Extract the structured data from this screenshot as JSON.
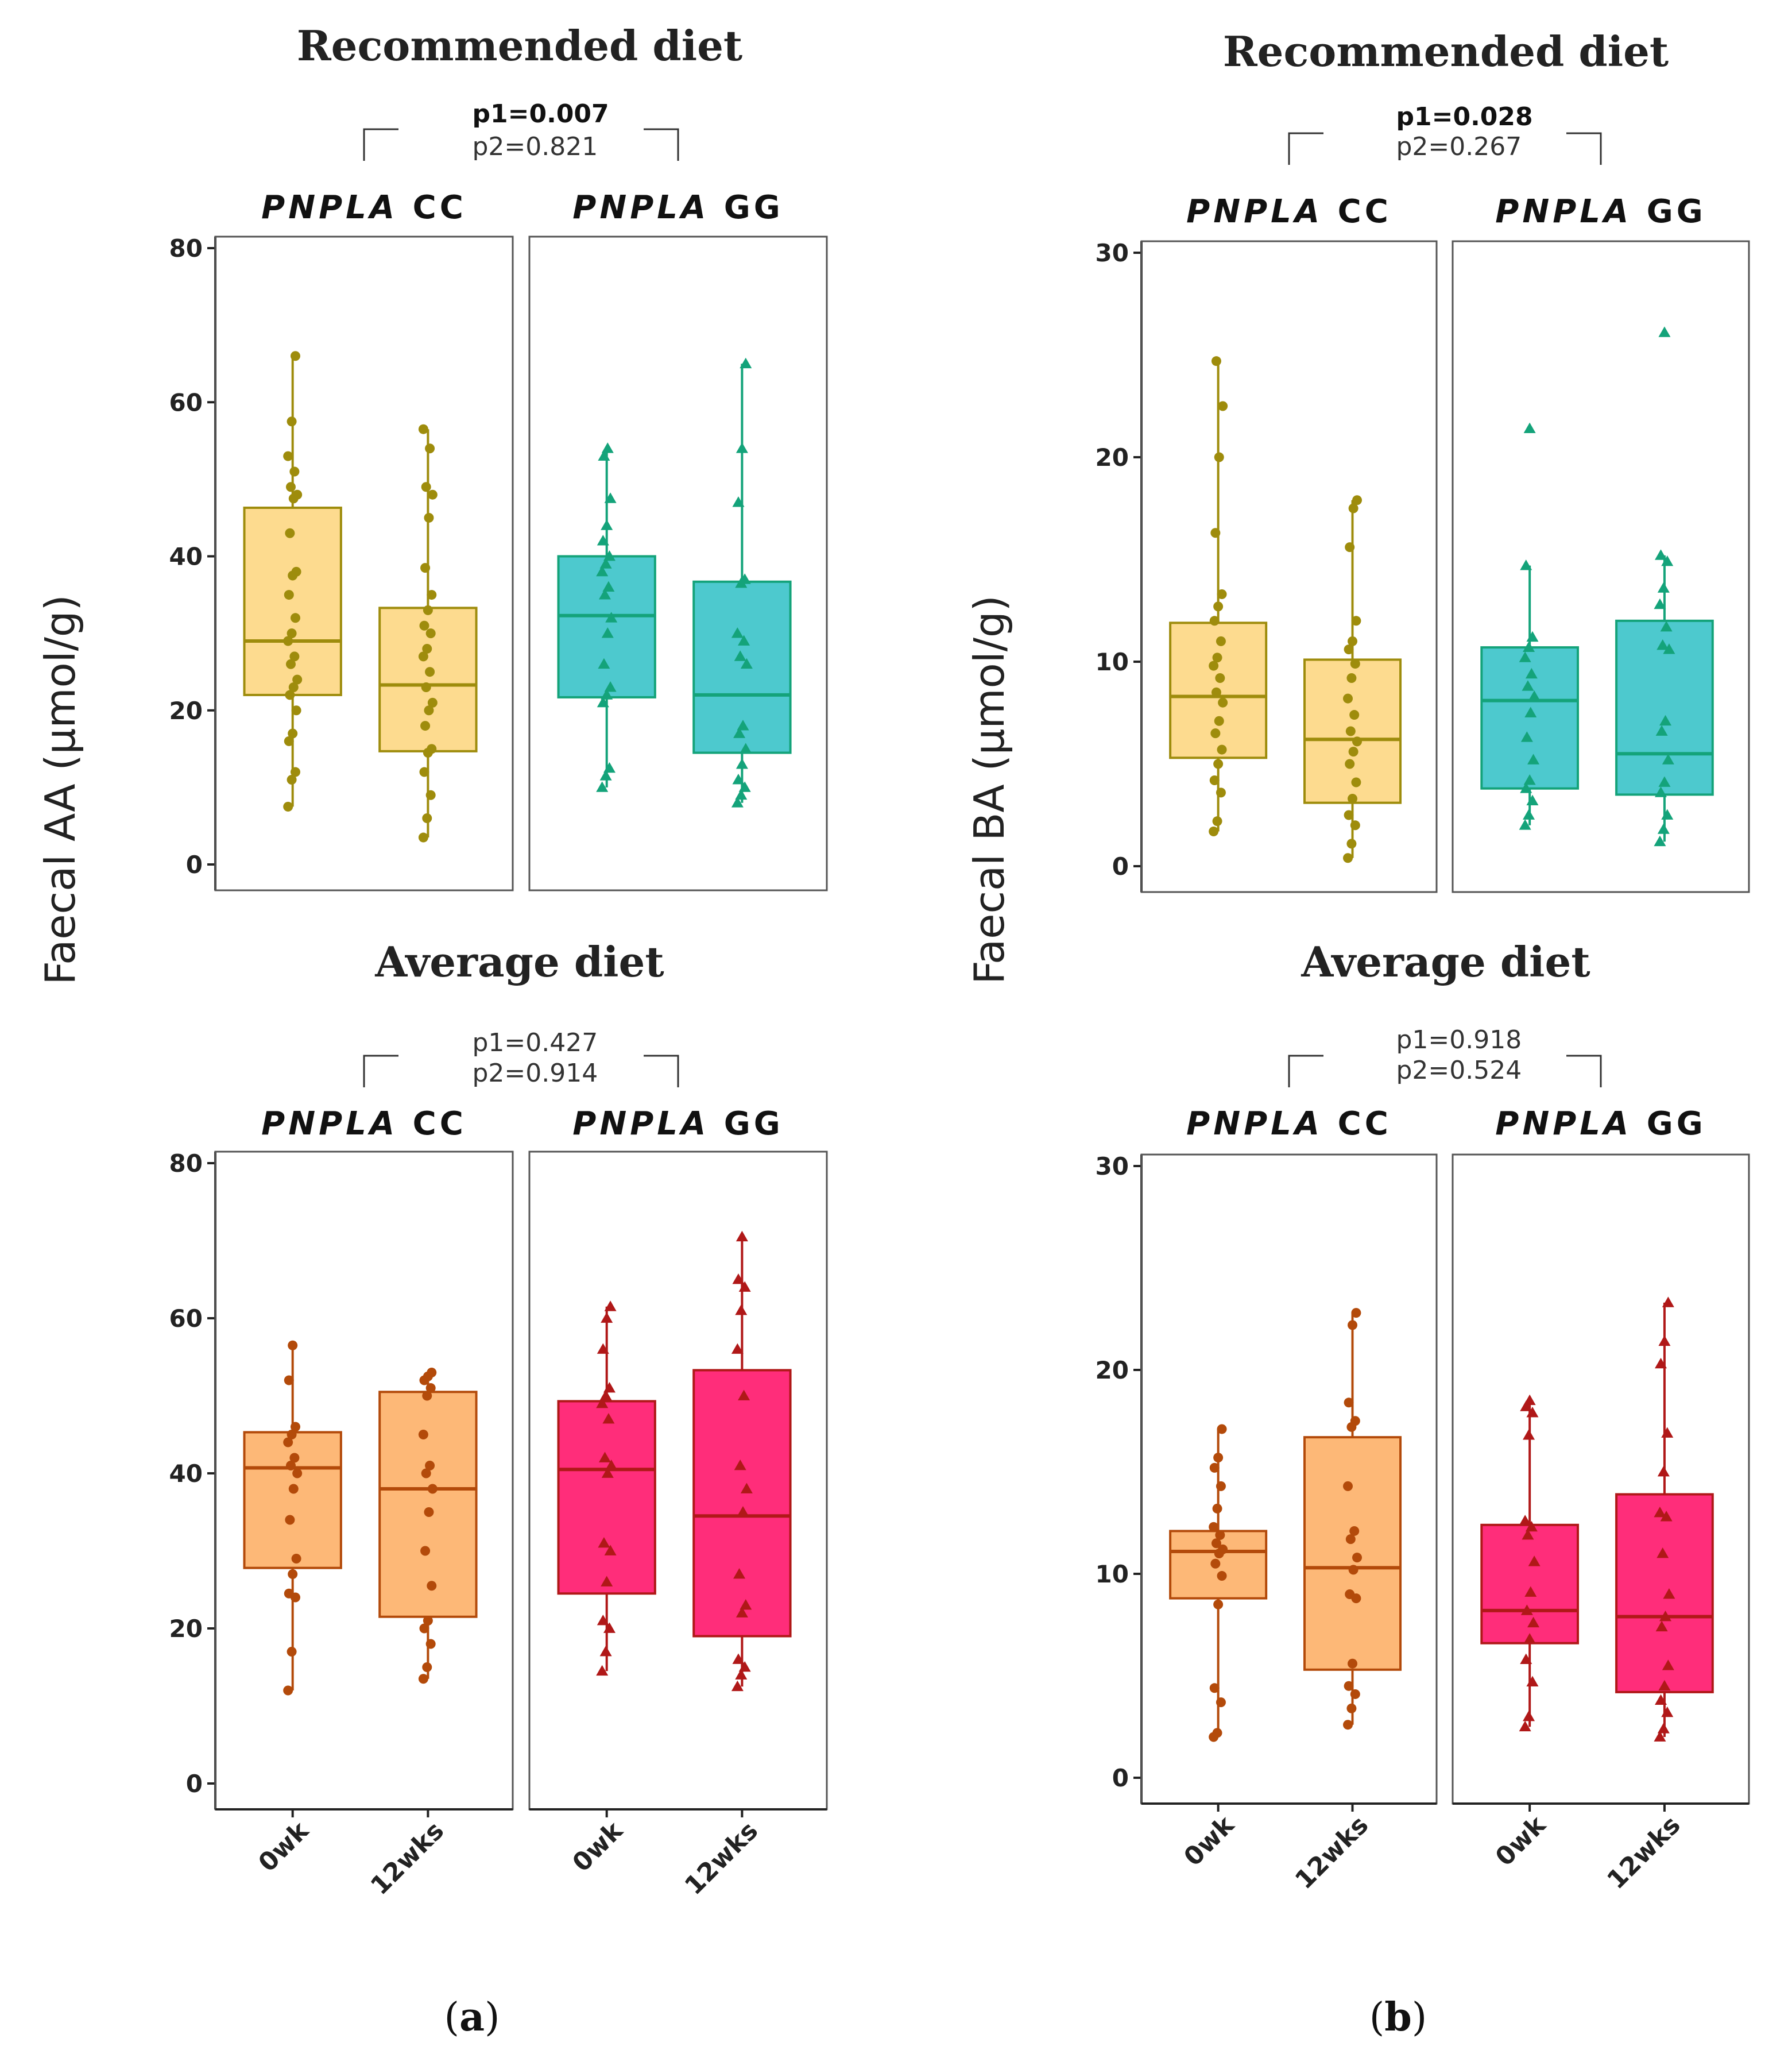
{
  "figure": {
    "panel_labels": [
      {
        "open": "(",
        "letter": "a",
        "close": ")"
      },
      {
        "open": "(",
        "letter": "b",
        "close": ")"
      }
    ]
  },
  "colors": {
    "rec_cc_fill": "#FDDB8F",
    "rec_cc_line": "#9E8C0C",
    "rec_gg_fill": "#4DC9CE",
    "rec_gg_line": "#14A37A",
    "avg_cc_fill": "#FDB877",
    "avg_cc_line": "#B34A0A",
    "avg_gg_fill": "#FF2D7A",
    "avg_gg_line": "#B01818"
  },
  "chart_data": [
    {
      "id": "aa_recommended",
      "type": "boxplot",
      "title": "Recommended diet",
      "ylabel": "Faecal  AA (μmol/g)",
      "ylim": [
        0,
        80
      ],
      "yticks": [
        0,
        20,
        40,
        60,
        80
      ],
      "pvalues": {
        "p1": "p1=0.007",
        "p2": "p2=0.821",
        "p1_bold": true,
        "p2_bold": false
      },
      "categories": [
        "0wk",
        "12wks"
      ],
      "facets": [
        {
          "strip_italic": "PNPLA",
          "strip_rest": "CC",
          "genotype": "CC",
          "marker": "circle",
          "boxes": [
            {
              "label": "0wk",
              "q1": 22,
              "median": 29,
              "q3": 46.3,
              "min": 7.5,
              "max": 66,
              "points": [
                7.5,
                11,
                12,
                16,
                17,
                20,
                22,
                23,
                24,
                26,
                27,
                29,
                30,
                32,
                35,
                37.5,
                38,
                43,
                47.5,
                48,
                49,
                51,
                53,
                57.5,
                66
              ]
            },
            {
              "label": "12wks",
              "q1": 14.7,
              "median": 23.3,
              "q3": 33.3,
              "min": 3.5,
              "max": 56.5,
              "points": [
                3.5,
                6,
                9,
                12,
                14.5,
                15,
                18,
                20,
                21,
                23,
                25,
                27,
                28,
                30,
                31,
                33,
                35,
                38.5,
                45,
                48,
                49,
                54,
                56.5
              ]
            }
          ]
        },
        {
          "strip_italic": "PNPLA",
          "strip_rest": "GG",
          "genotype": "GG",
          "marker": "triangle",
          "boxes": [
            {
              "label": "0wk",
              "q1": 21.7,
              "median": 32.3,
              "q3": 40,
              "min": 10,
              "max": 54,
              "points": [
                10,
                11.5,
                12.5,
                21,
                22,
                23,
                26,
                30,
                32,
                35,
                36,
                38,
                39,
                40,
                42,
                44,
                47.5,
                53,
                54
              ]
            },
            {
              "label": "12wks",
              "q1": 14.5,
              "median": 22,
              "q3": 36.7,
              "min": 8,
              "max": 65,
              "points": [
                8,
                9,
                10,
                11,
                13,
                15,
                17,
                18,
                26,
                27,
                29,
                30,
                36.5,
                37,
                47,
                54,
                65
              ]
            }
          ]
        }
      ]
    },
    {
      "id": "aa_average",
      "type": "boxplot",
      "title": "Average diet",
      "ylabel": "Faecal  AA (μmol/g)",
      "ylim": [
        0,
        80
      ],
      "yticks": [
        0,
        20,
        40,
        60,
        80
      ],
      "pvalues": {
        "p1": "p1=0.427",
        "p2": "p2=0.914",
        "p1_bold": false,
        "p2_bold": false
      },
      "categories": [
        "0wk",
        "12wks"
      ],
      "facets": [
        {
          "strip_italic": "PNPLA",
          "strip_rest": "CC",
          "genotype": "CC",
          "marker": "circle",
          "boxes": [
            {
              "label": "0wk",
              "q1": 27.8,
              "median": 40.7,
              "q3": 45.3,
              "min": 12,
              "max": 56.5,
              "points": [
                12,
                17,
                24,
                24.5,
                27,
                29,
                34,
                38,
                40,
                41,
                42,
                44,
                45,
                46,
                52,
                56.5
              ]
            },
            {
              "label": "12wks",
              "q1": 21.5,
              "median": 38,
              "q3": 50.5,
              "min": 13.5,
              "max": 53,
              "points": [
                13.5,
                15,
                18,
                20,
                21,
                25.5,
                30,
                35,
                38,
                40,
                41,
                45,
                50,
                51,
                52,
                52.5,
                53
              ]
            }
          ]
        },
        {
          "strip_italic": "PNPLA",
          "strip_rest": "GG",
          "genotype": "GG",
          "marker": "triangle",
          "boxes": [
            {
              "label": "0wk",
              "q1": 24.5,
              "median": 40.5,
              "q3": 49.3,
              "min": 14.5,
              "max": 61.5,
              "points": [
                14.5,
                17,
                20,
                21,
                26,
                30,
                31,
                40,
                41,
                42,
                47,
                49,
                50,
                51,
                56,
                60,
                61.5
              ]
            },
            {
              "label": "12wks",
              "q1": 19,
              "median": 34.5,
              "q3": 53.3,
              "min": 12.5,
              "max": 70.5,
              "points": [
                12.5,
                14,
                15,
                16,
                22,
                23,
                27,
                35,
                38,
                41,
                50,
                56,
                61,
                64,
                65,
                70.5
              ]
            }
          ]
        }
      ]
    },
    {
      "id": "ba_recommended",
      "type": "boxplot",
      "title": "Recommended diet",
      "ylabel": "Faecal  BA (μmol/g)",
      "ylim": [
        0,
        30
      ],
      "yticks": [
        0,
        10,
        20,
        30
      ],
      "pvalues": {
        "p1": "p1=0.028",
        "p2": "p2=0.267",
        "p1_bold": true,
        "p2_bold": false
      },
      "categories": [
        "0wk",
        "12wks"
      ],
      "facets": [
        {
          "strip_italic": "PNPLA",
          "strip_rest": "CC",
          "genotype": "CC",
          "marker": "circle",
          "boxes": [
            {
              "label": "0wk",
              "q1": 5.3,
              "median": 8.3,
              "q3": 11.9,
              "min": 1.7,
              "max": 24.7,
              "points": [
                1.7,
                2.2,
                3.6,
                4.2,
                5,
                5.7,
                6.5,
                7.1,
                8,
                8.5,
                9.2,
                9.8,
                10.2,
                11,
                12,
                12.7,
                13.3,
                16.3,
                20,
                22.5,
                24.7
              ]
            },
            {
              "label": "12wks",
              "q1": 3.1,
              "median": 6.2,
              "q3": 10.1,
              "min": 0.4,
              "max": 17.9,
              "points": [
                0.4,
                1.1,
                2,
                2.5,
                3.3,
                4.1,
                5,
                5.6,
                6.1,
                6.6,
                7.4,
                8.2,
                9.2,
                9.9,
                10.6,
                11,
                12,
                15.6,
                17.5,
                17.9
              ]
            }
          ]
        },
        {
          "strip_italic": "PNPLA",
          "strip_rest": "GG",
          "genotype": "GG",
          "marker": "triangle",
          "boxes": [
            {
              "label": "0wk",
              "q1": 3.8,
              "median": 8.1,
              "q3": 10.7,
              "min": 2,
              "max": 14.7,
              "points": [
                2,
                2.5,
                3.2,
                3.8,
                4.2,
                5.2,
                6.3,
                7.5,
                8.3,
                8.8,
                9.4,
                10.2,
                10.7,
                11.2,
                14.7,
                21.4
              ]
            },
            {
              "label": "12wks",
              "q1": 3.5,
              "median": 5.5,
              "q3": 12,
              "min": 1.2,
              "max": 15.2,
              "points": [
                1.2,
                1.8,
                2.5,
                3.6,
                4.1,
                5.2,
                6.6,
                7.1,
                10.6,
                10.8,
                11.7,
                12.8,
                13.6,
                14.9,
                15.2,
                26.1
              ]
            }
          ]
        }
      ]
    },
    {
      "id": "ba_average",
      "type": "boxplot",
      "title": "Average diet",
      "ylabel": "Faecal  BA (μmol/g)",
      "ylim": [
        0,
        30
      ],
      "yticks": [
        0,
        10,
        20,
        30
      ],
      "pvalues": {
        "p1": "p1=0.918",
        "p2": "p2=0.524",
        "p1_bold": false,
        "p2_bold": false
      },
      "categories": [
        "0wk",
        "12wks"
      ],
      "facets": [
        {
          "strip_italic": "PNPLA",
          "strip_rest": "CC",
          "genotype": "CC",
          "marker": "circle",
          "boxes": [
            {
              "label": "0wk",
              "q1": 8.8,
              "median": 11.1,
              "q3": 12.1,
              "min": 2,
              "max": 17.1,
              "points": [
                2,
                2.2,
                3.7,
                4.4,
                8.5,
                9.9,
                10.5,
                11,
                11.2,
                11.5,
                11.9,
                12.3,
                13.2,
                14.3,
                15.2,
                15.7,
                17.1
              ]
            },
            {
              "label": "12wks",
              "q1": 5.3,
              "median": 10.3,
              "q3": 16.7,
              "min": 2.6,
              "max": 22.8,
              "points": [
                2.6,
                3.4,
                4.1,
                4.5,
                5.6,
                8.8,
                9,
                10.2,
                10.8,
                11.7,
                12.1,
                14.3,
                17.2,
                17.5,
                18.4,
                22.2,
                22.8
              ]
            }
          ]
        },
        {
          "strip_italic": "PNPLA",
          "strip_rest": "GG",
          "genotype": "GG",
          "marker": "triangle",
          "boxes": [
            {
              "label": "0wk",
              "q1": 6.6,
              "median": 8.2,
              "q3": 12.4,
              "min": 2.5,
              "max": 18.5,
              "points": [
                2.5,
                3,
                4.7,
                5.8,
                6.8,
                7.6,
                8.2,
                9.1,
                10.6,
                11.9,
                12.3,
                12.6,
                16.8,
                17.9,
                18.2,
                18.5
              ]
            },
            {
              "label": "12wks",
              "q1": 4.2,
              "median": 7.9,
              "q3": 13.9,
              "min": 2,
              "max": 23.3,
              "points": [
                2,
                2.4,
                3.2,
                3.8,
                4.5,
                5.5,
                7.4,
                7.9,
                9,
                11,
                12.8,
                13,
                15,
                16.9,
                20.3,
                21.4,
                23.3
              ]
            }
          ]
        }
      ]
    }
  ]
}
